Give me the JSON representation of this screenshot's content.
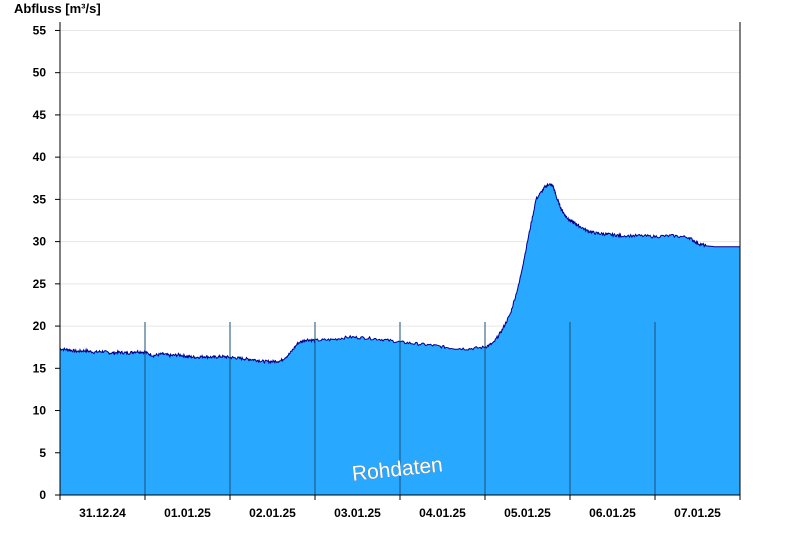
{
  "chart_data": {
    "type": "area",
    "ylabel": "Abfluss [m³/s]",
    "xlabel": "",
    "title": "",
    "watermark": "Rohdaten",
    "ylim": [
      0,
      56
    ],
    "yticks": [
      0,
      5,
      10,
      15,
      20,
      25,
      30,
      35,
      40,
      45,
      50,
      55
    ],
    "xlim": [
      0,
      8
    ],
    "xtick_labels": [
      "31.12.24",
      "01.01.25",
      "02.01.25",
      "03.01.25",
      "04.01.25",
      "05.01.25",
      "06.01.25",
      "07.01.25"
    ],
    "grid": true,
    "fill_color": "#29a8ff",
    "line_color": "#000088",
    "series": [
      {
        "x": [
          0,
          0.1,
          0.2,
          0.3,
          0.4,
          0.5,
          0.6,
          0.7,
          0.8,
          0.9,
          1.0,
          1.1,
          1.2,
          1.3,
          1.4,
          1.5,
          1.6,
          1.7,
          1.8,
          1.9,
          2.0,
          2.1,
          2.2,
          2.3,
          2.4,
          2.5,
          2.6,
          2.7,
          2.8,
          2.9,
          3.0,
          3.2,
          3.4,
          3.6,
          3.8,
          4.0,
          4.2,
          4.4,
          4.6,
          4.8,
          5.0,
          5.1,
          5.2,
          5.3,
          5.4,
          5.5,
          5.6,
          5.7,
          5.75,
          5.8,
          5.85,
          5.9,
          5.95,
          6.0,
          6.05,
          6.1,
          6.2,
          6.3,
          6.4,
          6.5,
          6.6,
          6.8,
          7.0,
          7.2,
          7.4,
          7.5,
          7.6,
          7.7,
          8.0
        ],
        "y": [
          17.3,
          17.2,
          17.0,
          17.1,
          16.9,
          17.0,
          16.8,
          16.9,
          16.8,
          17.0,
          16.9,
          16.5,
          16.7,
          16.5,
          16.6,
          16.4,
          16.3,
          16.4,
          16.3,
          16.4,
          16.3,
          16.2,
          16.1,
          16.0,
          15.8,
          15.8,
          15.9,
          16.7,
          18.0,
          18.4,
          18.3,
          18.4,
          18.7,
          18.6,
          18.4,
          18.1,
          17.9,
          17.7,
          17.4,
          17.3,
          17.5,
          18.0,
          19.5,
          21.5,
          25.0,
          30.0,
          35.0,
          36.4,
          36.8,
          36.6,
          35.0,
          33.8,
          33.0,
          32.5,
          32.2,
          31.9,
          31.3,
          31.0,
          30.9,
          30.8,
          30.7,
          30.7,
          30.6,
          30.7,
          30.5,
          29.8,
          29.5,
          29.4,
          29.4
        ]
      }
    ]
  }
}
